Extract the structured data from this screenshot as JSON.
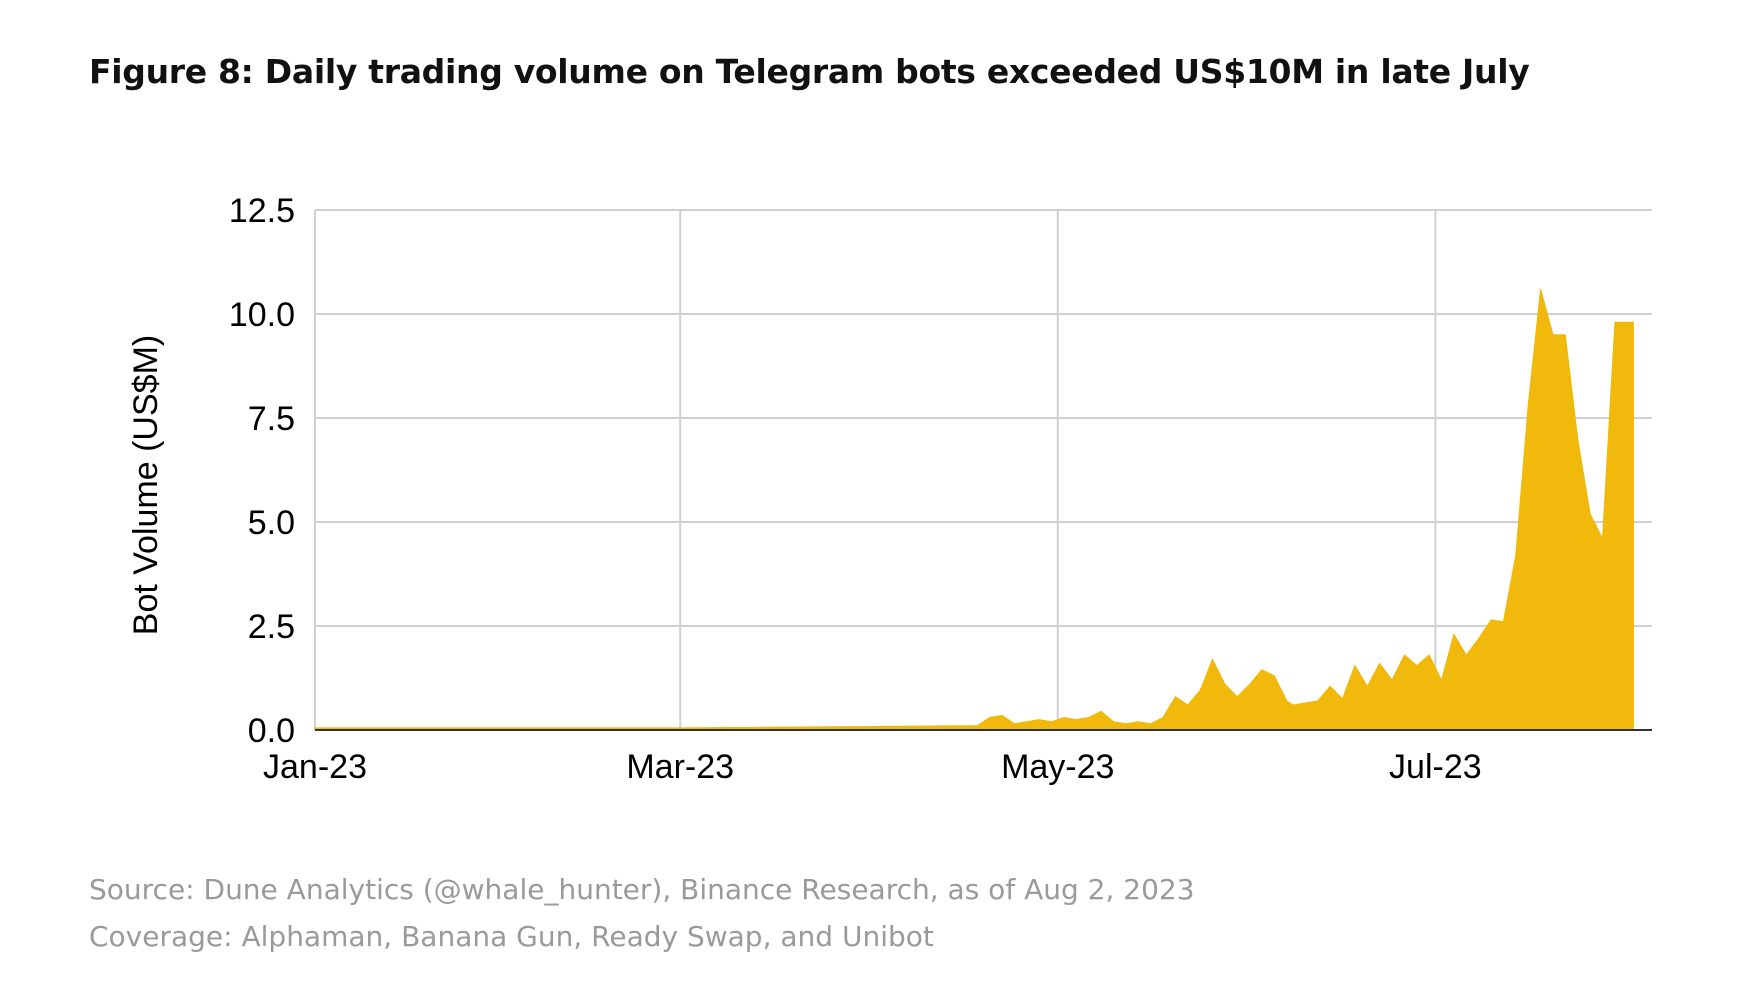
{
  "figure": {
    "title": "Figure 8: Daily trading volume on Telegram bots exceeded US$10M in late July",
    "source": "Source: Dune Analytics (@whale_hunter), Binance Research, as of Aug 2, 2023",
    "coverage": "Coverage: Alphaman, Banana Gun, Ready Swap, and Unibot"
  },
  "chart_data": {
    "type": "area",
    "title": "",
    "xlabel": "",
    "ylabel": "Bot Volume (US$M)",
    "ylim": [
      0,
      12.5
    ],
    "xlim": [
      "2023-01-01",
      "2023-08-05"
    ],
    "grid": true,
    "legend": "none",
    "fill_color": "#F0B90B",
    "x_ticks": [
      {
        "date": "2023-01-01",
        "label": "Jan-23"
      },
      {
        "date": "2023-03-01",
        "label": "Mar-23"
      },
      {
        "date": "2023-05-01",
        "label": "May-23"
      },
      {
        "date": "2023-07-01",
        "label": "Jul-23"
      }
    ],
    "y_ticks": [
      {
        "value": 0,
        "label": "0.0"
      },
      {
        "value": 2.5,
        "label": "2.5"
      },
      {
        "value": 5,
        "label": "5.0"
      },
      {
        "value": 7.5,
        "label": "7.5"
      },
      {
        "value": 10,
        "label": "10.0"
      },
      {
        "value": 12.5,
        "label": "12.5"
      }
    ],
    "series": [
      {
        "x": [
          "2023-01-01",
          "2023-03-01",
          "2023-04-15",
          "2023-04-18",
          "2023-04-20",
          "2023-04-22",
          "2023-04-24",
          "2023-04-26",
          "2023-04-28",
          "2023-04-30",
          "2023-05-02",
          "2023-05-04",
          "2023-05-06",
          "2023-05-08",
          "2023-05-10",
          "2023-05-12",
          "2023-05-14",
          "2023-05-16",
          "2023-05-18",
          "2023-05-20",
          "2023-05-22",
          "2023-05-24",
          "2023-05-26",
          "2023-05-28",
          "2023-05-30",
          "2023-06-01",
          "2023-06-03",
          "2023-06-05",
          "2023-06-07",
          "2023-06-08",
          "2023-06-10",
          "2023-06-12",
          "2023-06-14",
          "2023-06-16",
          "2023-06-18",
          "2023-06-20",
          "2023-06-22",
          "2023-06-24",
          "2023-06-26",
          "2023-06-28",
          "2023-06-30",
          "2023-07-02",
          "2023-07-04",
          "2023-07-06",
          "2023-07-08",
          "2023-07-10",
          "2023-07-12",
          "2023-07-14",
          "2023-07-16",
          "2023-07-18",
          "2023-07-20",
          "2023-07-22",
          "2023-07-24",
          "2023-07-26",
          "2023-07-28",
          "2023-07-30",
          "2023-08-01",
          "2023-08-02"
        ],
        "values": [
          0.05,
          0.05,
          0.1,
          0.1,
          0.3,
          0.35,
          0.15,
          0.2,
          0.25,
          0.2,
          0.3,
          0.25,
          0.3,
          0.45,
          0.2,
          0.15,
          0.2,
          0.15,
          0.3,
          0.8,
          0.6,
          0.95,
          1.7,
          1.1,
          0.8,
          1.1,
          1.45,
          1.3,
          0.7,
          0.6,
          0.65,
          0.7,
          1.05,
          0.75,
          1.55,
          1.05,
          1.6,
          1.2,
          1.8,
          1.55,
          1.8,
          1.2,
          2.3,
          1.8,
          2.2,
          2.65,
          2.6,
          4.2,
          7.8,
          10.6,
          9.5,
          9.5,
          7.0,
          5.2,
          4.6,
          9.8,
          9.8,
          9.8
        ]
      }
    ]
  }
}
